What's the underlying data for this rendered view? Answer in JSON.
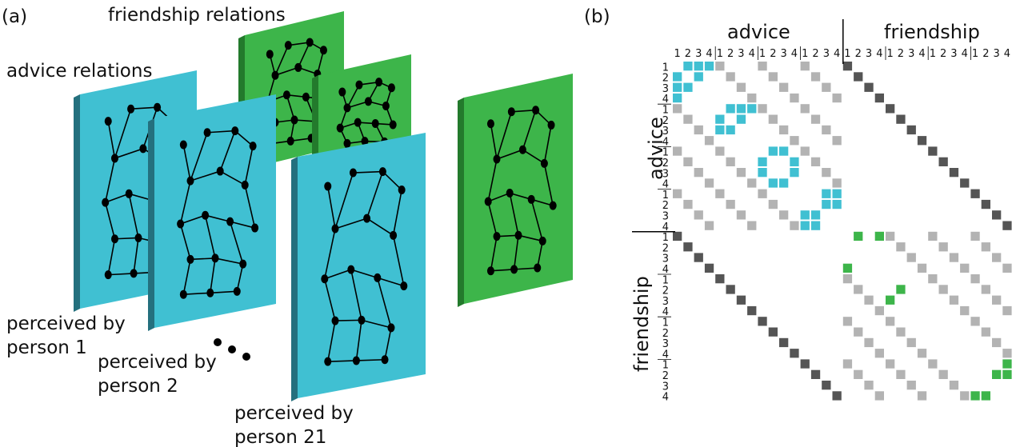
{
  "panel_a": {
    "label": "(a)",
    "friendship_title": "friendship relations",
    "advice_title": "advice relations",
    "person1": [
      "perceived by",
      "person 1"
    ],
    "person2": [
      "perceived by",
      "person 2"
    ],
    "person21": [
      "perceived by",
      "person 21"
    ]
  },
  "panel_b": {
    "label": "(b)",
    "top_advice": "advice",
    "top_friendship": "friendship",
    "side_advice": "advice",
    "side_friendship": "friendship",
    "index_labels": [
      "1",
      "2",
      "3",
      "4"
    ]
  },
  "colors": {
    "advice": "#40c0d2",
    "advice_edge": "#24707e",
    "friendship": "#3db54a",
    "friendship_edge": "#237a2c",
    "light_gray": "#b3b3b3",
    "dark_gray": "#555555"
  }
}
